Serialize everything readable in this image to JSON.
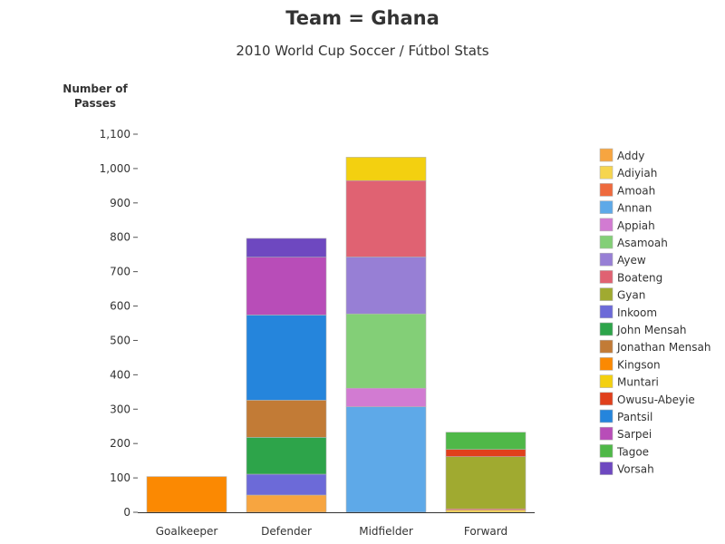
{
  "chart_data": {
    "type": "bar",
    "stacked": true,
    "title": "Team = Ghana",
    "subtitle": "2010 World Cup Soccer / Fútbol Stats",
    "ylabel": "Number of Passes",
    "xlabel": "",
    "ylim": [
      0,
      1100
    ],
    "yticks": [
      0,
      100,
      200,
      300,
      400,
      500,
      600,
      700,
      800,
      900,
      1000,
      1100
    ],
    "ytick_labels": [
      "0",
      "100",
      "200",
      "300",
      "400",
      "500",
      "600",
      "700",
      "800",
      "900",
      "1,000",
      "1,100"
    ],
    "categories": [
      "Goalkeeper",
      "Defender",
      "Midfielder",
      "Forward"
    ],
    "legend_position": "right",
    "series": [
      {
        "name": "Addy",
        "color": "#f7a540",
        "values": [
          0,
          50,
          0,
          0
        ]
      },
      {
        "name": "Adiyiah",
        "color": "#f6d54f",
        "values": [
          0,
          0,
          0,
          6
        ]
      },
      {
        "name": "Amoah",
        "color": "#ee6a3e",
        "values": [
          0,
          0,
          0,
          4
        ]
      },
      {
        "name": "Annan",
        "color": "#5ea9e8",
        "values": [
          0,
          0,
          307,
          0
        ]
      },
      {
        "name": "Appiah",
        "color": "#d27bd2",
        "values": [
          0,
          0,
          54,
          0
        ]
      },
      {
        "name": "Asamoah",
        "color": "#83cf77",
        "values": [
          0,
          0,
          216,
          0
        ]
      },
      {
        "name": "Ayew",
        "color": "#977fd5",
        "values": [
          0,
          0,
          166,
          0
        ]
      },
      {
        "name": "Boateng",
        "color": "#e06272",
        "values": [
          0,
          0,
          222,
          0
        ]
      },
      {
        "name": "Gyan",
        "color": "#a0aa30",
        "values": [
          0,
          0,
          0,
          152
        ]
      },
      {
        "name": "Inkoom",
        "color": "#6c6ad8",
        "values": [
          0,
          61,
          0,
          0
        ]
      },
      {
        "name": "John Mensah",
        "color": "#2da44a",
        "values": [
          0,
          107,
          0,
          0
        ]
      },
      {
        "name": "Jonathan Mensah",
        "color": "#c27b36",
        "values": [
          0,
          108,
          0,
          0
        ]
      },
      {
        "name": "Kingson",
        "color": "#fb8902",
        "values": [
          104,
          0,
          0,
          0
        ]
      },
      {
        "name": "Muntari",
        "color": "#f3d010",
        "values": [
          0,
          0,
          68,
          0
        ]
      },
      {
        "name": "Owusu-Abeyie",
        "color": "#e0401c",
        "values": [
          0,
          0,
          0,
          21
        ]
      },
      {
        "name": "Pantsil",
        "color": "#2585dc",
        "values": [
          0,
          248,
          0,
          0
        ]
      },
      {
        "name": "Sarpei",
        "color": "#b84db8",
        "values": [
          0,
          168,
          0,
          0
        ]
      },
      {
        "name": "Tagoe",
        "color": "#4fb848",
        "values": [
          0,
          0,
          0,
          50
        ]
      },
      {
        "name": "Vorsah",
        "color": "#6e48c0",
        "values": [
          0,
          55,
          0,
          0
        ]
      }
    ]
  }
}
